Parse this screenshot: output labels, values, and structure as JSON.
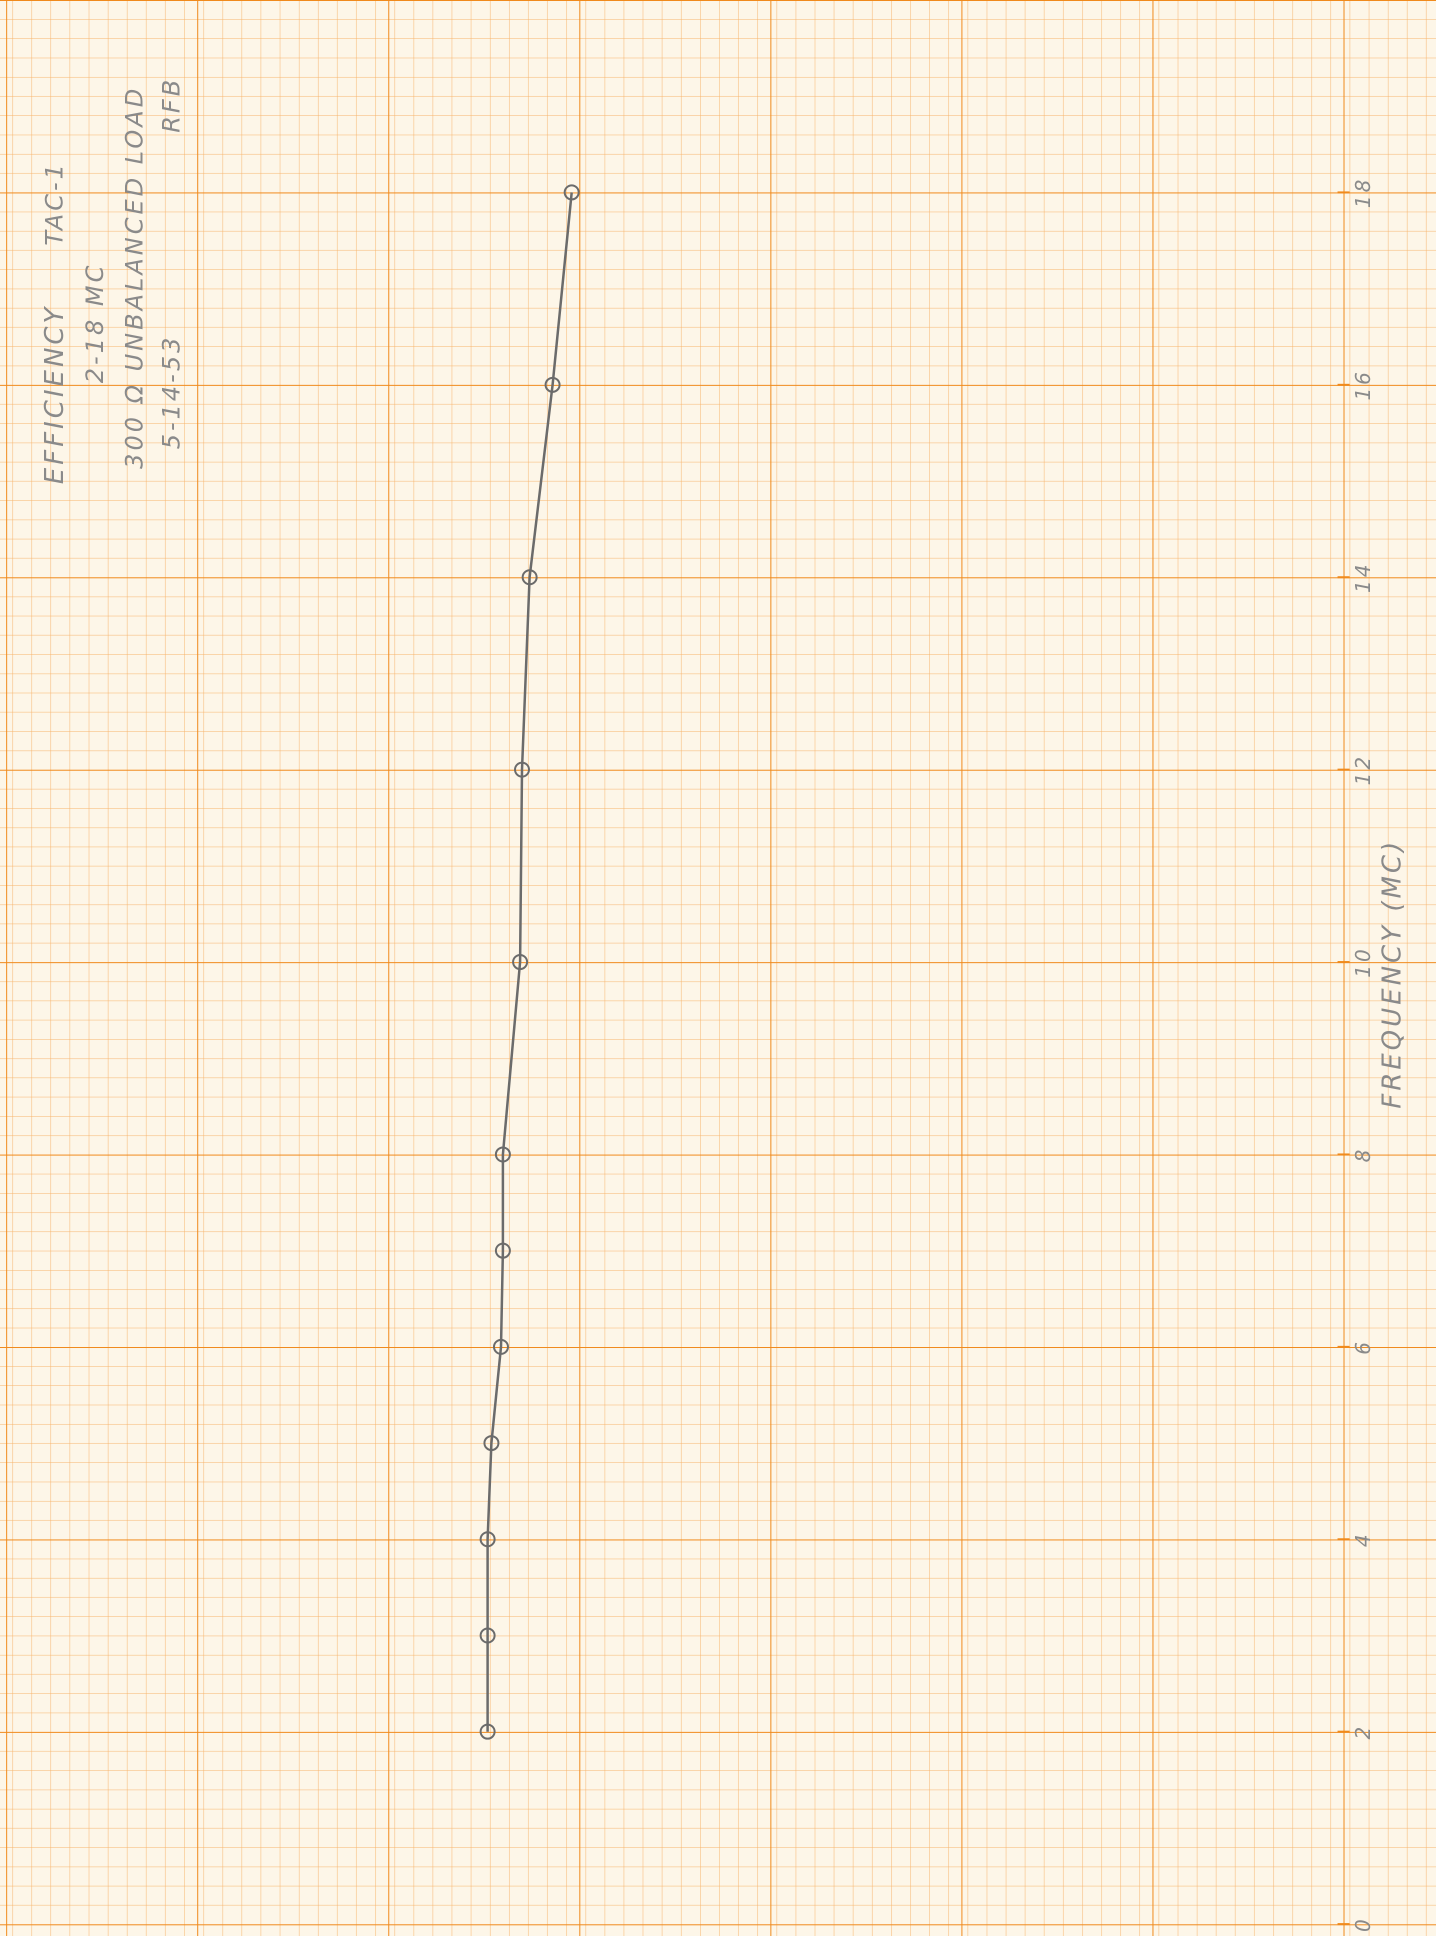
{
  "chart_data": {
    "type": "line",
    "title": "EFFICIENCY",
    "annotations": [
      "TAC-1",
      "2-18 MC",
      "300 Ω UNBALANCED LOAD",
      "5-14-53",
      "RFB"
    ],
    "x_label": "FREQUENCY (MC)",
    "x": [
      2,
      3,
      4,
      5,
      6,
      7,
      8,
      10,
      12,
      14,
      16,
      18
    ],
    "values": [
      44.8,
      44.8,
      44.8,
      44.6,
      44.1,
      44.0,
      44.0,
      43.1,
      43.0,
      42.6,
      41.4,
      40.4
    ],
    "color": "#6b6b6b",
    "xlim": [
      0,
      20
    ],
    "xticks": [
      0,
      2,
      4,
      6,
      8,
      10,
      12,
      14,
      16,
      18
    ],
    "ylim": [
      0,
      70
    ]
  }
}
